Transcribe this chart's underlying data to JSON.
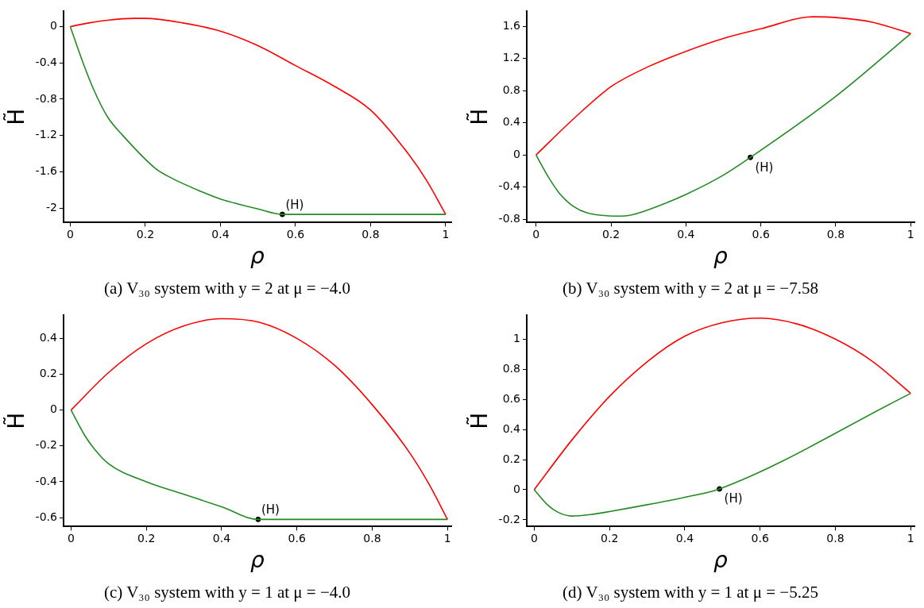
{
  "chart_data": [
    {
      "type": "line",
      "title": "(a) V₃₀ system with y = 2 at μ = −4.0",
      "xlabel": "ρ",
      "ylabel": "H̃",
      "xlim": [
        -0.018,
        1.015
      ],
      "xticks": [
        0,
        0.2,
        0.4,
        0.6,
        0.8,
        1
      ],
      "ylim": [
        -2.16,
        0.17
      ],
      "yticks": [
        -2,
        -1.6,
        -1.2,
        -0.8,
        -0.4,
        0
      ],
      "grid": false,
      "series": [
        {
          "type": "line",
          "color": "#ff0000",
          "x": [
            0,
            0.05,
            0.1,
            0.17,
            0.2,
            0.3,
            0.4,
            0.5,
            0.6,
            0.7,
            0.8,
            0.9,
            0.95,
            1
          ],
          "values": [
            0,
            0.04,
            0.07,
            0.09,
            0.09,
            0.04,
            -0.05,
            -0.21,
            -0.43,
            -0.65,
            -0.92,
            -1.4,
            -1.7,
            -2.07
          ]
        },
        {
          "type": "line",
          "color": "#228b22",
          "x": [
            0,
            0.036,
            0.063,
            0.1,
            0.14,
            0.226,
            0.27,
            0.35,
            0.4,
            0.5,
            0.565,
            1
          ],
          "values": [
            0,
            -0.42,
            -0.7,
            -1.0,
            -1.2,
            -1.56,
            -1.67,
            -1.82,
            -1.9,
            -2.01,
            -2.07,
            -2.07
          ]
        },
        {
          "type": "scatter",
          "color": "#000000",
          "marker": "circle",
          "x": [
            0.565
          ],
          "values": [
            -2.07
          ]
        }
      ],
      "annotations": [
        {
          "text": "(H)",
          "x": 0.565,
          "y": -2.07
        }
      ]
    },
    {
      "type": "line",
      "title": "(b) V₃₀ system with y = 2 at μ = −7.58",
      "xlabel": "ρ",
      "ylabel": "H̃",
      "xlim": [
        -0.025,
        1.01
      ],
      "xticks": [
        0,
        0.2,
        0.4,
        0.6,
        0.8,
        1
      ],
      "ylim": [
        -0.84,
        1.79
      ],
      "yticks": [
        -0.8,
        -0.4,
        0,
        0.4,
        0.8,
        1.2,
        1.6
      ],
      "grid": false,
      "series": [
        {
          "type": "line",
          "color": "#ff0000",
          "x": [
            0,
            0.1,
            0.2,
            0.3,
            0.4,
            0.5,
            0.6,
            0.74,
            0.8,
            0.9,
            1
          ],
          "values": [
            0,
            0.45,
            0.85,
            1.1,
            1.29,
            1.45,
            1.57,
            1.72,
            1.71,
            1.65,
            1.51
          ]
        },
        {
          "type": "line",
          "color": "#228b22",
          "x": [
            0,
            0.035,
            0.063,
            0.1,
            0.137,
            0.226,
            0.25,
            0.3,
            0.4,
            0.5,
            0.572,
            0.8,
            1
          ],
          "values": [
            0,
            -0.29,
            -0.48,
            -0.64,
            -0.72,
            -0.76,
            -0.75,
            -0.68,
            -0.49,
            -0.25,
            -0.03,
            0.73,
            1.51
          ]
        },
        {
          "type": "scatter",
          "color": "#000000",
          "marker": "circle",
          "x": [
            0.572
          ],
          "values": [
            -0.03
          ]
        }
      ],
      "annotations": [
        {
          "text": "(H)",
          "x": 0.572,
          "y": -0.03
        }
      ]
    },
    {
      "type": "line",
      "title": "(c) V₃₀ system with y = 1 at μ = −4.0",
      "xlabel": "ρ",
      "ylabel": "H̃",
      "xlim": [
        -0.02,
        1.01
      ],
      "xticks": [
        0,
        0.2,
        0.4,
        0.6,
        0.8,
        1
      ],
      "ylim": [
        -0.65,
        0.53
      ],
      "yticks": [
        -0.6,
        -0.4,
        -0.2,
        0,
        0.2,
        0.4
      ],
      "grid": false,
      "series": [
        {
          "type": "line",
          "color": "#ff0000",
          "x": [
            0,
            0.1,
            0.2,
            0.3,
            0.4,
            0.5,
            0.6,
            0.7,
            0.8,
            0.9,
            0.95,
            1
          ],
          "values": [
            0,
            0.21,
            0.37,
            0.47,
            0.51,
            0.49,
            0.4,
            0.25,
            0.03,
            -0.24,
            -0.41,
            -0.61
          ]
        },
        {
          "type": "line",
          "color": "#228b22",
          "x": [
            0,
            0.036,
            0.063,
            0.1,
            0.2,
            0.3,
            0.4,
            0.497,
            1
          ],
          "values": [
            0,
            -0.14,
            -0.22,
            -0.3,
            -0.4,
            -0.47,
            -0.54,
            -0.61,
            -0.61
          ]
        },
        {
          "type": "scatter",
          "color": "#000000",
          "marker": "circle",
          "x": [
            0.497
          ],
          "values": [
            -0.61
          ]
        }
      ],
      "annotations": [
        {
          "text": "(H)",
          "x": 0.497,
          "y": -0.61
        }
      ]
    },
    {
      "type": "line",
      "title": "(d) V₃₀ system with y = 1 at μ = −5.25",
      "xlabel": "ρ",
      "ylabel": "H̃",
      "xlim": [
        -0.02,
        1.01
      ],
      "xticks": [
        0,
        0.2,
        0.4,
        0.6,
        0.8,
        1
      ],
      "ylim": [
        -0.245,
        1.16
      ],
      "yticks": [
        -0.2,
        0,
        0.2,
        0.4,
        0.6,
        0.8,
        1
      ],
      "grid": false,
      "series": [
        {
          "type": "line",
          "color": "#ff0000",
          "x": [
            0,
            0.1,
            0.2,
            0.3,
            0.4,
            0.5,
            0.6,
            0.7,
            0.8,
            0.9,
            1
          ],
          "values": [
            0,
            0.33,
            0.62,
            0.85,
            1.02,
            1.11,
            1.14,
            1.1,
            1.0,
            0.85,
            0.64
          ]
        },
        {
          "type": "line",
          "color": "#228b22",
          "x": [
            0,
            0.035,
            0.063,
            0.1,
            0.15,
            0.2,
            0.3,
            0.4,
            0.492,
            1
          ],
          "values": [
            0,
            -0.1,
            -0.15,
            -0.175,
            -0.165,
            -0.145,
            -0.1,
            -0.05,
            0.005,
            0.64
          ]
        },
        {
          "type": "scatter",
          "color": "#000000",
          "marker": "circle",
          "x": [
            0.492
          ],
          "values": [
            0.005
          ]
        }
      ],
      "annotations": [
        {
          "text": "(H)",
          "x": 0.492,
          "y": 0.005
        }
      ]
    }
  ]
}
